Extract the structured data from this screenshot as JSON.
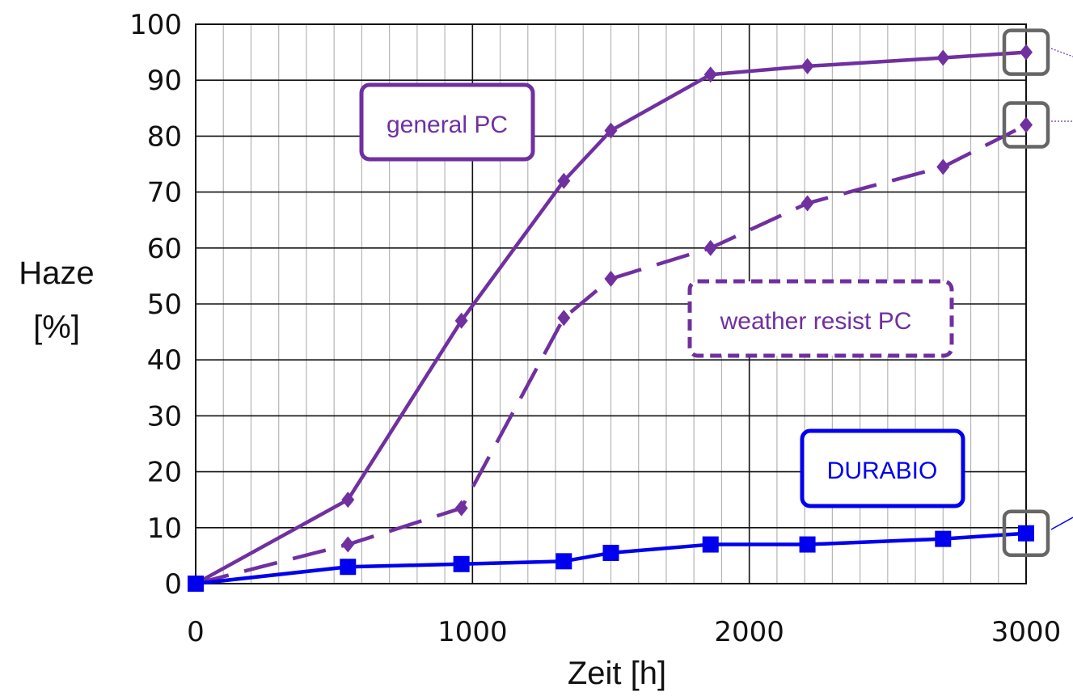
{
  "chart_data": {
    "type": "line",
    "xlabel": "Zeit [h]",
    "ylabel_lines": [
      "Haze",
      "[%]"
    ],
    "xlim": [
      0,
      3000
    ],
    "ylim": [
      0,
      100
    ],
    "xticks": [
      0,
      1000,
      2000,
      3000
    ],
    "yticks": [
      0,
      10,
      20,
      30,
      40,
      50,
      60,
      70,
      80,
      90,
      100
    ],
    "x_minor_step": 100,
    "grid": true,
    "series": [
      {
        "name": "general PC",
        "color": "#7030A0",
        "line_style": "solid",
        "marker": "diamond",
        "x": [
          0,
          550,
          960,
          1330,
          1500,
          1860,
          2210,
          2700,
          3000
        ],
        "y": [
          0,
          15,
          47,
          72,
          81,
          91,
          92.5,
          94,
          95
        ]
      },
      {
        "name": "weather resist PC",
        "color": "#7030A0",
        "line_style": "dashed",
        "marker": "diamond",
        "x": [
          0,
          550,
          960,
          1330,
          1500,
          1860,
          2210,
          2700,
          3000
        ],
        "y": [
          0,
          7,
          13.5,
          47.5,
          54.5,
          60,
          68,
          74.5,
          82
        ]
      },
      {
        "name": "DURABIO",
        "color": "#0000EE",
        "line_style": "solid",
        "marker": "square",
        "x": [
          0,
          550,
          960,
          1330,
          1500,
          1860,
          2210,
          2700,
          3000
        ],
        "y": [
          0,
          3,
          3.5,
          4,
          5.5,
          7,
          7,
          8,
          9
        ]
      }
    ],
    "highlight_points_x": 3000
  }
}
